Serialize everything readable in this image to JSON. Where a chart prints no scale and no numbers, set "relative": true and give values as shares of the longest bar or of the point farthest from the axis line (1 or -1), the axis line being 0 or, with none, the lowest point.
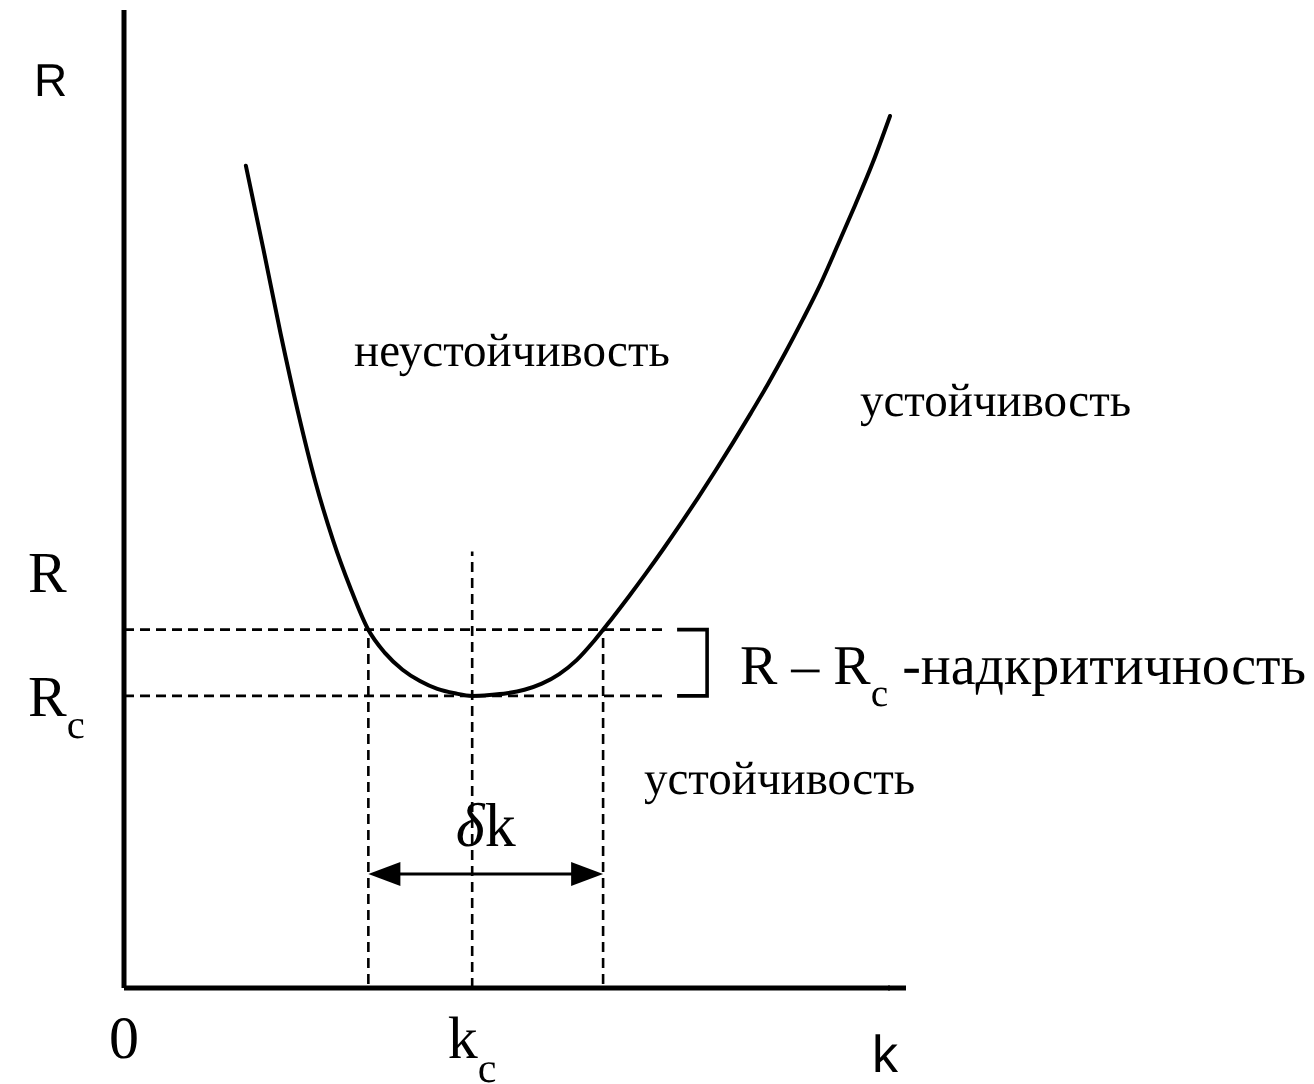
{
  "chart_data": {
    "type": "line",
    "relative": true,
    "xlabel": "k",
    "ylabel": "R",
    "categories": [
      "0",
      null,
      null,
      null,
      null,
      null,
      null,
      null,
      null,
      null,
      null,
      null,
      null,
      null,
      null,
      null,
      null,
      null,
      null,
      null,
      "k$_{c}$",
      null,
      null,
      null,
      null,
      null,
      null,
      null,
      null,
      null,
      null,
      null,
      null,
      null,
      null,
      null,
      null,
      null,
      null,
      null,
      null,
      null,
      null,
      null,
      null
    ],
    "series": [
      {
        "color": "#000000",
        "values": [
          null,
          null,
          null,
          null,
          null,
          null,
          null,
          0.943,
          0.848,
          0.75,
          0.66,
          0.58,
          0.514,
          0.459,
          0.412,
          0.384,
          0.365,
          0.352,
          0.343,
          0.338,
          0.335,
          0.336,
          0.338,
          0.342,
          0.349,
          0.36,
          0.376,
          0.398,
          0.423,
          0.449,
          0.476,
          0.504,
          0.533,
          0.563,
          0.594,
          0.626,
          0.659,
          0.693,
          0.729,
          0.767,
          0.807,
          0.852,
          0.898,
          0.946,
          1.0
        ]
      }
    ],
    "ref_lines": [
      {
        "axis": "y",
        "value": 0.411,
        "label": "R",
        "line_style": "dashed"
      },
      {
        "axis": "y",
        "value": 0.335,
        "label": "R$_{c}$",
        "line_style": "dashed"
      },
      {
        "axis": "x",
        "value": "k$_{c}$",
        "line_style": "dashed"
      }
    ],
    "annotations": [
      "неустойчивость",
      "устойчивость",
      "R – R$_{c}$ -надкритичность",
      "устойчивость",
      "δk"
    ]
  }
}
